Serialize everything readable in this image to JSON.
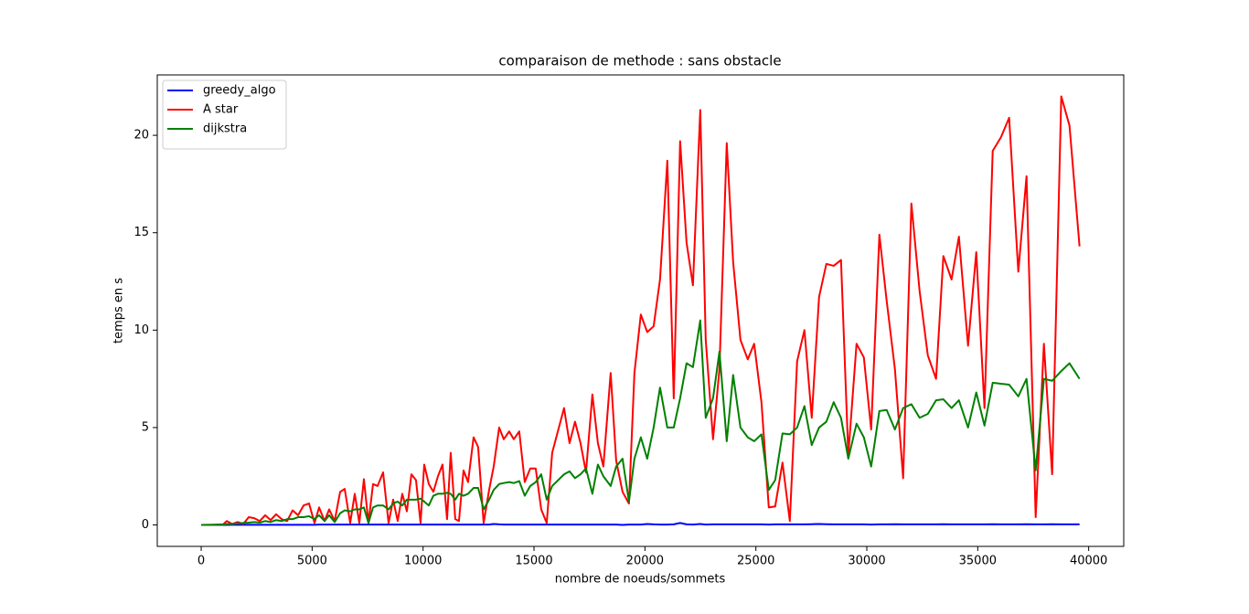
{
  "chart_data": {
    "type": "line",
    "title": "comparaison de methode : sans obstacle",
    "xlabel": "nombre de noeuds/sommets",
    "ylabel": "temps en s",
    "x": [
      0,
      494,
      989,
      1153,
      1401,
      1648,
      1895,
      2142,
      2389,
      2637,
      2884,
      3131,
      3378,
      3625,
      3872,
      4120,
      4367,
      4614,
      4861,
      5108,
      5314,
      5561,
      5768,
      6015,
      6262,
      6468,
      6715,
      6921,
      7127,
      7333,
      7539,
      7745,
      7951,
      8198,
      8445,
      8651,
      8857,
      9063,
      9269,
      9475,
      9681,
      9887,
      10052,
      10258,
      10464,
      10670,
      10876,
      11082,
      11246,
      11452,
      11617,
      11823,
      12029,
      12276,
      12482,
      12730,
      12977,
      13183,
      13430,
      13636,
      13883,
      14089,
      14336,
      14583,
      14830,
      15077,
      15325,
      15572,
      15819,
      16354,
      16602,
      16849,
      17096,
      17343,
      17631,
      17879,
      18126,
      18455,
      18703,
      18991,
      19279,
      19526,
      19815,
      20103,
      20392,
      20680,
      21009,
      21298,
      21586,
      21875,
      22163,
      22493,
      22740,
      23069,
      23358,
      23687,
      23975,
      24305,
      24634,
      24923,
      25252,
      25582,
      25870,
      26200,
      26530,
      26859,
      27189,
      27518,
      27848,
      28177,
      28507,
      28837,
      29166,
      29537,
      29866,
      30196,
      30567,
      30896,
      31267,
      31638,
      32009,
      32380,
      32750,
      33121,
      33451,
      33821,
      34151,
      34563,
      34933,
      35304,
      35675,
      36046,
      36416,
      36828,
      37199,
      37611,
      37982,
      38353,
      38765,
      39135,
      39588
    ],
    "series": [
      {
        "name": "greedy_algo",
        "color": "#0000ff",
        "values": [
          0,
          0,
          0.005,
          0.005,
          0.01,
          0.01,
          0.01,
          0.01,
          0.01,
          0.01,
          0.01,
          0.01,
          0.01,
          0.01,
          0.01,
          0.01,
          0.01,
          0.01,
          0.01,
          0.01,
          0.02,
          0.02,
          0.02,
          0.02,
          0.02,
          0.02,
          0.02,
          0.02,
          0.02,
          0.02,
          0.02,
          0.02,
          0.02,
          0.02,
          0.02,
          0.02,
          0.02,
          0.02,
          0.02,
          0.02,
          0.02,
          0.02,
          0.02,
          0.02,
          0.02,
          0.02,
          0.02,
          0.02,
          0.02,
          0.02,
          0.02,
          0.02,
          0.02,
          0.02,
          0.02,
          0.02,
          0.02,
          0.05,
          0.03,
          0.02,
          0.02,
          0.02,
          0.02,
          0.02,
          0.02,
          0.02,
          0.02,
          0.02,
          0.02,
          0.02,
          0.02,
          0.02,
          0.02,
          0.02,
          0.02,
          0.02,
          0.02,
          0.02,
          0.02,
          0,
          0.02,
          0.02,
          0.02,
          0.05,
          0.03,
          0.02,
          0.02,
          0.03,
          0.1,
          0.03,
          0.02,
          0.05,
          0.02,
          0.03,
          0.03,
          0.03,
          0.03,
          0.03,
          0.03,
          0.03,
          0.03,
          0.02,
          0.03,
          0.03,
          0.03,
          0.03,
          0.03,
          0.04,
          0.05,
          0.04,
          0.03,
          0.03,
          0.03,
          0.03,
          0.03,
          0.02,
          0.03,
          0.03,
          0.04,
          0.03,
          0.03,
          0.03,
          0.03,
          0.03,
          0.04,
          0.03,
          0.03,
          0.03,
          0.03,
          0.03,
          0.04,
          0.03,
          0.03,
          0.03,
          0.04,
          0.03,
          0.03,
          0.04,
          0.03,
          0.03,
          0.03
        ]
      },
      {
        "name": "A star",
        "color": "#ff0000",
        "values": [
          0,
          0.01,
          0.03,
          0.2,
          0.05,
          0.15,
          0.05,
          0.4,
          0.35,
          0.2,
          0.5,
          0.25,
          0.55,
          0.3,
          0.2,
          0.75,
          0.5,
          1.0,
          1.1,
          0.1,
          0.9,
          0.2,
          0.8,
          0.2,
          1.7,
          1.85,
          0.1,
          1.6,
          0.1,
          2.35,
          0.1,
          2.1,
          2.0,
          2.7,
          0.1,
          1.3,
          0.2,
          1.6,
          0.7,
          2.6,
          2.3,
          0.1,
          3.1,
          2.1,
          1.7,
          2.5,
          3.1,
          0.3,
          3.7,
          0.3,
          0.2,
          2.8,
          2.2,
          4.5,
          4.0,
          0.1,
          1.8,
          3.0,
          5.0,
          4.4,
          4.8,
          4.4,
          4.8,
          2.2,
          2.9,
          2.9,
          0.8,
          0.1,
          3.7,
          6.0,
          4.2,
          5.3,
          4.2,
          2.7,
          6.7,
          4.2,
          3.0,
          7.8,
          3.3,
          1.7,
          1.1,
          7.8,
          10.8,
          9.9,
          10.2,
          12.6,
          18.7,
          6.5,
          19.7,
          14.5,
          12.3,
          21.3,
          9.5,
          4.4,
          8.0,
          19.6,
          13.5,
          9.5,
          8.5,
          9.3,
          6.3,
          0.9,
          0.95,
          3.2,
          0.2,
          8.4,
          10.0,
          5.5,
          11.7,
          13.4,
          13.3,
          13.6,
          3.6,
          9.3,
          8.6,
          4.9,
          14.9,
          11.5,
          8.0,
          2.4,
          16.5,
          12.0,
          8.7,
          7.5,
          13.8,
          12.6,
          14.8,
          9.2,
          14.0,
          6.0,
          19.2,
          19.9,
          20.9,
          13.0,
          17.9,
          0.4,
          9.3,
          2.6,
          22.0,
          20.5,
          14.3
        ]
      },
      {
        "name": "dijkstra",
        "color": "#008000",
        "values": [
          0,
          0.01,
          0.02,
          0.05,
          0.05,
          0.08,
          0.1,
          0.12,
          0.15,
          0.12,
          0.2,
          0.15,
          0.25,
          0.2,
          0.3,
          0.3,
          0.4,
          0.4,
          0.45,
          0.3,
          0.5,
          0.2,
          0.5,
          0.15,
          0.6,
          0.75,
          0.7,
          0.8,
          0.8,
          0.9,
          0.1,
          0.9,
          1.0,
          1.0,
          0.8,
          1.1,
          1.2,
          1.0,
          1.3,
          1.3,
          1.3,
          1.35,
          1.2,
          1.0,
          1.5,
          1.6,
          1.6,
          1.65,
          1.6,
          1.3,
          1.6,
          1.5,
          1.6,
          1.9,
          1.9,
          0.8,
          1.3,
          1.8,
          2.1,
          2.15,
          2.2,
          2.15,
          2.25,
          1.5,
          2.0,
          2.2,
          2.6,
          1.3,
          2.0,
          2.6,
          2.75,
          2.4,
          2.6,
          2.9,
          1.6,
          3.1,
          2.5,
          2.0,
          3.0,
          3.4,
          1.2,
          3.4,
          4.5,
          3.4,
          5.0,
          7.05,
          5.0,
          5.0,
          6.5,
          8.3,
          8.1,
          10.5,
          5.5,
          6.5,
          8.9,
          4.3,
          7.7,
          5.0,
          4.5,
          4.3,
          4.65,
          1.8,
          2.3,
          4.7,
          4.65,
          5.0,
          6.1,
          4.1,
          5.0,
          5.3,
          6.3,
          5.5,
          3.4,
          5.2,
          4.5,
          3.0,
          5.85,
          5.9,
          4.9,
          6.0,
          6.2,
          5.5,
          5.7,
          6.4,
          6.45,
          6.0,
          6.4,
          5.0,
          6.8,
          5.1,
          7.3,
          7.25,
          7.2,
          6.6,
          7.5,
          2.8,
          7.5,
          7.4,
          7.9,
          8.3,
          7.5
        ]
      }
    ],
    "xlim": [
      -1980,
      41580
    ],
    "ylim": [
      -1.1,
      23.1
    ],
    "xticks": [
      0,
      5000,
      10000,
      15000,
      20000,
      25000,
      30000,
      35000,
      40000
    ],
    "yticks": [
      0,
      5,
      10,
      15,
      20
    ],
    "legend": "upper left"
  }
}
